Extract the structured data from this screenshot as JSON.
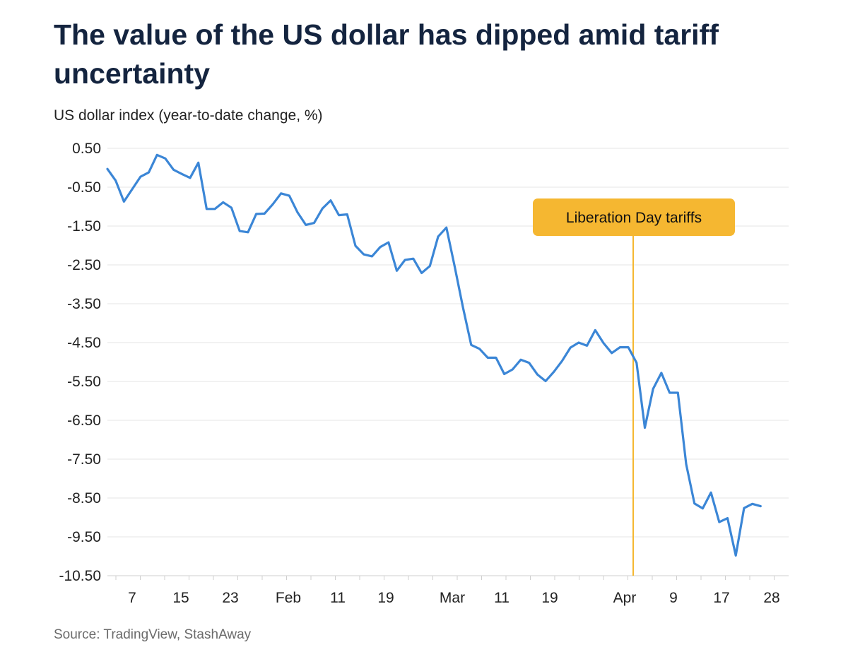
{
  "chart_data": {
    "type": "line",
    "title": "The value of the US dollar has dipped amid tariff uncertainty",
    "ylabel": "US dollar index (year-to-date change, %)",
    "ylim": [
      -10.5,
      0.5
    ],
    "yticks": [
      "0.50",
      "-0.50",
      "-1.50",
      "-2.50",
      "-3.50",
      "-4.50",
      "-5.50",
      "-6.50",
      "-7.50",
      "-8.50",
      "-9.50",
      "-10.50"
    ],
    "xticks": [
      "7",
      "15",
      "23",
      "Feb",
      "11",
      "19",
      "Mar",
      "11",
      "19",
      "Apr",
      "9",
      "17",
      "28"
    ],
    "grid": true,
    "color": "#3b86d6",
    "series": [
      {
        "values": [
          -0.03,
          -0.33,
          -0.87,
          -0.55,
          -0.23,
          -0.12,
          0.33,
          0.24,
          -0.05,
          -0.16,
          -0.26,
          0.13,
          -1.06,
          -1.06,
          -0.89,
          -1.03,
          -1.63,
          -1.66,
          -1.19,
          -1.18,
          -0.94,
          -0.66,
          -0.72,
          -1.15,
          -1.47,
          -1.42,
          -1.05,
          -0.84,
          -1.22,
          -1.2,
          -2.01,
          -2.23,
          -2.28,
          -2.04,
          -1.92,
          -2.65,
          -2.37,
          -2.34,
          -2.71,
          -2.53,
          -1.77,
          -1.54,
          -2.54,
          -3.59,
          -4.56,
          -4.66,
          -4.89,
          -4.89,
          -5.31,
          -5.19,
          -4.94,
          -5.02,
          -5.32,
          -5.49,
          -5.25,
          -4.97,
          -4.63,
          -4.5,
          -4.58,
          -4.18,
          -4.51,
          -4.77,
          -4.62,
          -4.62,
          -5.02,
          -6.69,
          -5.69,
          -5.28,
          -5.79,
          -5.79,
          -7.63,
          -8.64,
          -8.77,
          -8.36,
          -9.12,
          -9.02,
          -9.98,
          -8.76,
          -8.65,
          -8.71
        ]
      }
    ],
    "annotations": [
      {
        "label": "Liberation Day tariffs",
        "x": "Apr 2",
        "color": "#f5b731"
      }
    ]
  },
  "source": "Source: TradingView, StashAway"
}
